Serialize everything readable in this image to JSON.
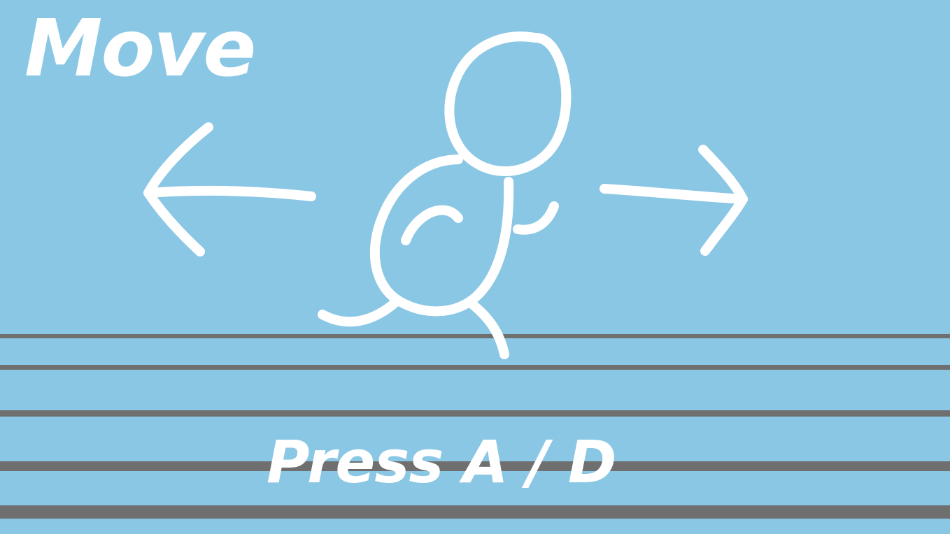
{
  "tutorial": {
    "title": "Move",
    "instruction": "Press A / D"
  },
  "icons": {
    "left_arrow": "left-arrow-icon",
    "right_arrow": "right-arrow-icon",
    "runner": "running-stick-figure-icon"
  },
  "colors": {
    "background": "#8ac7e4",
    "foreground": "#ffffff",
    "ground_lines": "#6f6f6f"
  }
}
